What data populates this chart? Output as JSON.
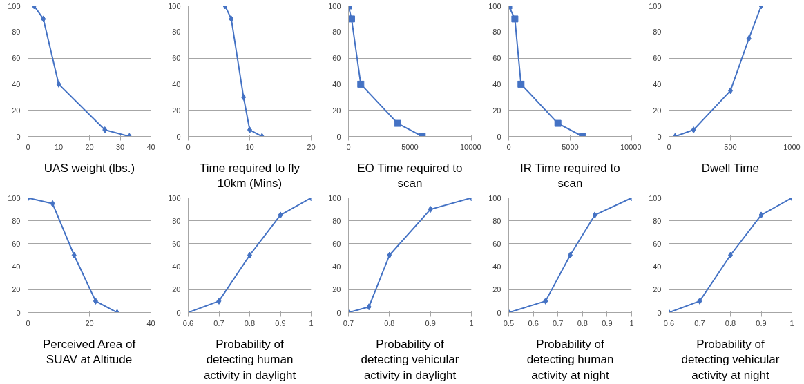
{
  "chart_data": [
    {
      "type": "line",
      "xlabel": "UAS weight (lbs.)",
      "x": [
        2,
        5,
        10,
        25,
        33
      ],
      "series": [
        {
          "color": "#4472c4",
          "values": [
            100,
            90,
            40,
            5,
            0
          ]
        }
      ],
      "xlim": [
        0,
        40
      ],
      "xticks": [
        0,
        10,
        20,
        30,
        40
      ],
      "ylim": [
        0,
        100
      ],
      "yticks": [
        0,
        20,
        40,
        60,
        80,
        100
      ],
      "grid": "y",
      "marker": "diamond"
    },
    {
      "type": "line",
      "xlabel": "Time required to fly 10km (Mins)",
      "x": [
        6,
        7,
        9,
        10,
        12
      ],
      "series": [
        {
          "color": "#4472c4",
          "values": [
            100,
            90,
            30,
            5,
            0
          ]
        }
      ],
      "xlim": [
        0,
        20
      ],
      "xticks": [
        0,
        10,
        20
      ],
      "ylim": [
        0,
        100
      ],
      "yticks": [
        0,
        20,
        40,
        60,
        80,
        100
      ],
      "grid": "y",
      "marker": "diamond"
    },
    {
      "type": "line",
      "xlabel": "EO Time required to scan",
      "x": [
        0,
        250,
        1000,
        4000,
        6000
      ],
      "series": [
        {
          "color": "#4472c4",
          "values": [
            100,
            90,
            40,
            10,
            0
          ]
        }
      ],
      "xlim": [
        0,
        10000
      ],
      "xticks": [
        0,
        5000,
        10000
      ],
      "ylim": [
        0,
        100
      ],
      "yticks": [
        0,
        20,
        40,
        60,
        80,
        100
      ],
      "grid": "y",
      "marker": "square"
    },
    {
      "type": "line",
      "xlabel": "IR Time required to scan",
      "x": [
        0,
        500,
        1000,
        4000,
        6000
      ],
      "series": [
        {
          "color": "#4472c4",
          "values": [
            100,
            90,
            40,
            10,
            0
          ]
        }
      ],
      "xlim": [
        0,
        10000
      ],
      "xticks": [
        0,
        5000,
        10000
      ],
      "ylim": [
        0,
        100
      ],
      "yticks": [
        0,
        20,
        40,
        60,
        80,
        100
      ],
      "grid": "y",
      "marker": "square"
    },
    {
      "type": "line",
      "xlabel": "Dwell Time",
      "x": [
        50,
        200,
        500,
        650,
        750
      ],
      "series": [
        {
          "color": "#4472c4",
          "values": [
            0,
            5,
            35,
            75,
            100
          ]
        }
      ],
      "xlim": [
        0,
        1000
      ],
      "xticks": [
        0,
        500,
        1000
      ],
      "ylim": [
        0,
        100
      ],
      "yticks": [
        0,
        20,
        40,
        60,
        80,
        100
      ],
      "grid": "y",
      "marker": "diamond"
    },
    {
      "type": "line",
      "xlabel": "Perceived Area of SUAV at Altitude",
      "x": [
        0,
        8,
        15,
        22,
        29
      ],
      "series": [
        {
          "color": "#4472c4",
          "values": [
            100,
            95,
            50,
            10,
            0
          ]
        }
      ],
      "xlim": [
        0,
        40
      ],
      "xticks": [
        0,
        20,
        40
      ],
      "ylim": [
        0,
        100
      ],
      "yticks": [
        0,
        20,
        40,
        60,
        80,
        100
      ],
      "grid": "y",
      "marker": "diamond"
    },
    {
      "type": "line",
      "xlabel": "Probability of detecting human activity in daylight",
      "x": [
        0.6,
        0.7,
        0.8,
        0.9,
        1
      ],
      "series": [
        {
          "color": "#4472c4",
          "values": [
            0,
            10,
            50,
            85,
            100
          ]
        }
      ],
      "xlim": [
        0.6,
        1
      ],
      "xticks": [
        0.6,
        0.7,
        0.8,
        0.9,
        1
      ],
      "ylim": [
        0,
        100
      ],
      "yticks": [
        0,
        20,
        40,
        60,
        80,
        100
      ],
      "grid": "y",
      "marker": "diamond"
    },
    {
      "type": "line",
      "xlabel": "Probability of detecting vehicular activity in daylight",
      "x": [
        0.7,
        0.75,
        0.8,
        0.9,
        1
      ],
      "series": [
        {
          "color": "#4472c4",
          "values": [
            0,
            5,
            50,
            90,
            100
          ]
        }
      ],
      "xlim": [
        0.7,
        1
      ],
      "xticks": [
        0.7,
        0.8,
        0.9,
        1
      ],
      "ylim": [
        0,
        100
      ],
      "yticks": [
        0,
        20,
        40,
        60,
        80,
        100
      ],
      "grid": "y",
      "marker": "diamond"
    },
    {
      "type": "line",
      "xlabel": "Probability of detecting human activity at night",
      "x": [
        0.5,
        0.65,
        0.75,
        0.85,
        1
      ],
      "series": [
        {
          "color": "#4472c4",
          "values": [
            0,
            10,
            50,
            85,
            100
          ]
        }
      ],
      "xlim": [
        0.5,
        1
      ],
      "xticks": [
        0.5,
        0.6,
        0.7,
        0.8,
        0.9,
        1
      ],
      "ylim": [
        0,
        100
      ],
      "yticks": [
        0,
        20,
        40,
        60,
        80,
        100
      ],
      "grid": "y",
      "marker": "diamond"
    },
    {
      "type": "line",
      "xlabel": "Probability of detecting vehicular activity at night",
      "x": [
        0.6,
        0.7,
        0.8,
        0.9,
        1
      ],
      "series": [
        {
          "color": "#4472c4",
          "values": [
            0,
            10,
            50,
            85,
            100
          ]
        }
      ],
      "xlim": [
        0.6,
        1
      ],
      "xticks": [
        0.6,
        0.7,
        0.8,
        0.9,
        1
      ],
      "ylim": [
        0,
        100
      ],
      "yticks": [
        0,
        20,
        40,
        60,
        80,
        100
      ],
      "grid": "y",
      "marker": "diamond"
    }
  ]
}
